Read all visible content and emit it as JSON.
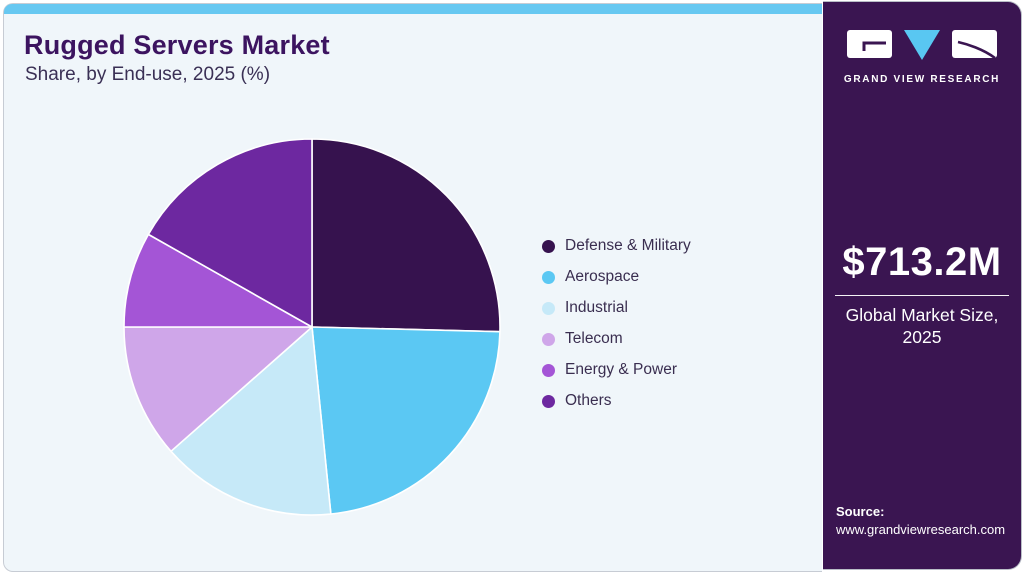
{
  "header": {
    "title": "Rugged Servers Market",
    "subtitle": "Share, by End-use, 2025 (%)"
  },
  "chart_data": {
    "type": "pie",
    "title": "Rugged Servers Market Share, by End-use, 2025 (%)",
    "categories": [
      "Defense & Military",
      "Aerospace",
      "Industrial",
      "Telecom",
      "Energy & Power",
      "Others"
    ],
    "values": [
      25.4,
      23.0,
      15.1,
      11.5,
      8.2,
      16.8
    ],
    "colors": [
      "#36124e",
      "#5bc8f3",
      "#c6e9f8",
      "#cfa6e9",
      "#a455d6",
      "#6d28a0"
    ],
    "start_angle_deg": 0,
    "direction": "clockwise",
    "legend_position": "right",
    "slice_border_color": "#ffffff"
  },
  "sidebar": {
    "brand_name": "GRAND VIEW RESEARCH",
    "market_size_value": "$713.2M",
    "market_size_label": "Global Market Size, 2025",
    "source_label": "Source:",
    "source_url": "www.grandviewresearch.com"
  },
  "theme": {
    "card_bg": "#f0f6fa",
    "top_bar_blue": "#67c8f1",
    "panel_purple": "#3a1551",
    "title_color": "#3c1460",
    "logo_triangle_blue": "#59c7f2"
  }
}
